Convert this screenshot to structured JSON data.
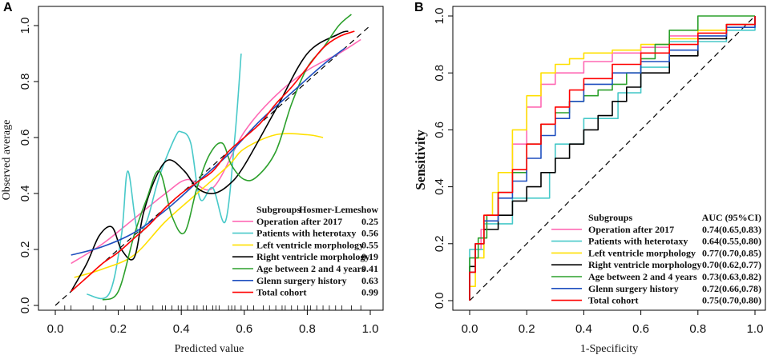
{
  "chart_data": [
    {
      "panel": "A",
      "type": "line",
      "title": "",
      "xlabel": "Predicted value",
      "ylabel": "Observed average",
      "xlim": [
        0.0,
        1.0
      ],
      "ylim": [
        0.0,
        1.0
      ],
      "xticks": [
        "0.0",
        "0.2",
        "0.4",
        "0.6",
        "0.8",
        "1.0"
      ],
      "yticks": [
        "0.0",
        "0.2",
        "0.4",
        "0.6",
        "0.8",
        "1.0"
      ],
      "reference_line": "diagonal dashed",
      "rug": [
        0.03,
        0.05,
        0.12,
        0.16,
        0.22,
        0.26,
        0.27,
        0.31,
        0.34,
        0.35,
        0.37,
        0.39,
        0.4,
        0.42,
        0.44,
        0.45,
        0.47,
        0.48,
        0.5,
        0.51,
        0.52,
        0.55,
        0.56,
        0.57,
        0.59,
        0.61,
        0.63,
        0.66,
        0.68,
        0.7,
        0.72,
        0.73,
        0.75,
        0.77,
        0.79,
        0.8,
        0.81,
        0.83,
        0.85,
        0.87,
        0.89,
        0.91,
        0.94,
        0.97
      ],
      "legend": {
        "header_left": "Subgroups",
        "header_right": "Hosmer-Lemeshow",
        "position": "bottom-right"
      },
      "series": [
        {
          "name": "Operation after 2017",
          "stat": "0.25",
          "color": "#ff69b4",
          "x": [
            0.05,
            0.15,
            0.25,
            0.35,
            0.42,
            0.5,
            0.6,
            0.7,
            0.8,
            0.9,
            0.97
          ],
          "y": [
            0.15,
            0.22,
            0.31,
            0.4,
            0.45,
            0.42,
            0.62,
            0.75,
            0.84,
            0.9,
            0.95
          ]
        },
        {
          "name": "Patients with heterotaxy",
          "stat": "0.56",
          "color": "#48c9c9",
          "x": [
            0.1,
            0.17,
            0.21,
            0.23,
            0.26,
            0.29,
            0.33,
            0.38,
            0.4,
            0.43,
            0.46,
            0.5,
            0.54,
            0.57,
            0.59
          ],
          "y": [
            0.04,
            0.04,
            0.25,
            0.48,
            0.27,
            0.3,
            0.46,
            0.6,
            0.62,
            0.58,
            0.38,
            0.42,
            0.3,
            0.6,
            0.9
          ]
        },
        {
          "name": "Left ventricle morphology",
          "stat": "0.55",
          "color": "#ffe000",
          "x": [
            0.06,
            0.15,
            0.25,
            0.35,
            0.45,
            0.55,
            0.6,
            0.7,
            0.8,
            0.85
          ],
          "y": [
            0.1,
            0.13,
            0.18,
            0.3,
            0.4,
            0.5,
            0.56,
            0.61,
            0.61,
            0.6
          ]
        },
        {
          "name": "Right ventricle morphology",
          "stat": "0.19",
          "color": "#000000",
          "x": [
            0.05,
            0.1,
            0.14,
            0.18,
            0.21,
            0.25,
            0.28,
            0.32,
            0.36,
            0.41,
            0.45,
            0.5,
            0.55,
            0.6,
            0.7,
            0.8,
            0.9,
            0.93
          ],
          "y": [
            0.05,
            0.15,
            0.25,
            0.28,
            0.2,
            0.17,
            0.33,
            0.46,
            0.52,
            0.48,
            0.42,
            0.4,
            0.43,
            0.5,
            0.7,
            0.9,
            0.97,
            0.98
          ]
        },
        {
          "name": "Age between 2 and 4 years",
          "stat": "0.41",
          "color": "#2ca02c",
          "x": [
            0.15,
            0.2,
            0.25,
            0.29,
            0.33,
            0.37,
            0.41,
            0.45,
            0.49,
            0.53,
            0.56,
            0.6,
            0.64,
            0.7,
            0.75,
            0.8,
            0.85,
            0.9,
            0.94
          ],
          "y": [
            0.02,
            0.05,
            0.25,
            0.38,
            0.48,
            0.32,
            0.26,
            0.42,
            0.54,
            0.58,
            0.5,
            0.45,
            0.46,
            0.55,
            0.72,
            0.85,
            0.92,
            1.0,
            1.04
          ]
        },
        {
          "name": "Glenn surgery history",
          "stat": "0.63",
          "color": "#1f4fbf",
          "x": [
            0.05,
            0.15,
            0.25,
            0.35,
            0.45,
            0.55,
            0.65,
            0.75,
            0.85,
            0.92
          ],
          "y": [
            0.18,
            0.21,
            0.26,
            0.34,
            0.44,
            0.54,
            0.66,
            0.76,
            0.86,
            0.92
          ]
        },
        {
          "name": "Total cohort",
          "stat": "0.99",
          "color": "#ff0000",
          "x": [
            0.05,
            0.1,
            0.15,
            0.2,
            0.25,
            0.3,
            0.35,
            0.4,
            0.45,
            0.5,
            0.55,
            0.6,
            0.65,
            0.7,
            0.75,
            0.8,
            0.85,
            0.9,
            0.95
          ],
          "y": [
            0.05,
            0.1,
            0.15,
            0.19,
            0.24,
            0.29,
            0.35,
            0.4,
            0.44,
            0.48,
            0.55,
            0.6,
            0.65,
            0.72,
            0.78,
            0.85,
            0.92,
            0.96,
            0.98
          ]
        }
      ]
    },
    {
      "panel": "B",
      "type": "line",
      "title": "",
      "xlabel": "1-Specificity",
      "ylabel": "Sensitivity",
      "xlim": [
        0.0,
        1.0
      ],
      "ylim": [
        0.0,
        1.0
      ],
      "xticks": [
        "0.0",
        "0.2",
        "0.4",
        "0.6",
        "0.8",
        "1.0"
      ],
      "yticks": [
        "0.0",
        "0.2",
        "0.4",
        "0.6",
        "0.8",
        "1.0"
      ],
      "reference_line": "diagonal dashed",
      "legend": {
        "header_left": "Subgroups",
        "header_right": "AUC (95%CI)",
        "position": "bottom-right"
      },
      "series": [
        {
          "name": "Operation after 2017",
          "stat": "0.74(0.65,0.83)",
          "color": "#ff69b4",
          "x": [
            0,
            0,
            0.02,
            0.04,
            0.06,
            0.1,
            0.15,
            0.2,
            0.25,
            0.3,
            0.4,
            0.5,
            0.6,
            0.7,
            0.8,
            0.9,
            1
          ],
          "y": [
            0,
            0.1,
            0.18,
            0.25,
            0.3,
            0.38,
            0.55,
            0.68,
            0.76,
            0.8,
            0.84,
            0.87,
            0.89,
            0.93,
            0.95,
            0.97,
            1
          ]
        },
        {
          "name": "Patients with heterotaxy",
          "stat": "0.64(0.55,0.80)",
          "color": "#48c9c9",
          "x": [
            0,
            0,
            0.03,
            0.05,
            0.1,
            0.15,
            0.2,
            0.28,
            0.3,
            0.35,
            0.4,
            0.45,
            0.5,
            0.52,
            0.55,
            0.6,
            0.7,
            0.8,
            0.9,
            1
          ],
          "y": [
            0,
            0.18,
            0.18,
            0.27,
            0.27,
            0.36,
            0.36,
            0.45,
            0.55,
            0.55,
            0.64,
            0.64,
            0.64,
            0.73,
            0.73,
            0.82,
            0.91,
            0.91,
            0.95,
            1
          ]
        },
        {
          "name": "Left ventricle morphology",
          "stat": "0.77(0.70,0.85)",
          "color": "#ffe000",
          "x": [
            0,
            0,
            0.02,
            0.05,
            0.08,
            0.1,
            0.15,
            0.2,
            0.25,
            0.3,
            0.35,
            0.4,
            0.5,
            0.6,
            0.7,
            0.8,
            0.9,
            1
          ],
          "y": [
            0,
            0.05,
            0.15,
            0.3,
            0.38,
            0.45,
            0.6,
            0.72,
            0.8,
            0.83,
            0.85,
            0.87,
            0.88,
            0.9,
            0.92,
            0.95,
            0.97,
            1
          ]
        },
        {
          "name": "Right ventricle morphology",
          "stat": "0.70(0.62,0.77)",
          "color": "#000000",
          "x": [
            0,
            0,
            0.02,
            0.05,
            0.1,
            0.15,
            0.2,
            0.25,
            0.3,
            0.35,
            0.4,
            0.45,
            0.5,
            0.55,
            0.6,
            0.7,
            0.8,
            0.9,
            1
          ],
          "y": [
            0,
            0.12,
            0.2,
            0.25,
            0.3,
            0.35,
            0.4,
            0.45,
            0.5,
            0.55,
            0.6,
            0.65,
            0.7,
            0.75,
            0.8,
            0.86,
            0.92,
            0.97,
            1
          ]
        },
        {
          "name": "Age between 2 and 4 years",
          "stat": "0.73(0.63,0.82)",
          "color": "#2ca02c",
          "x": [
            0,
            0,
            0.03,
            0.06,
            0.1,
            0.15,
            0.2,
            0.25,
            0.3,
            0.35,
            0.4,
            0.45,
            0.5,
            0.55,
            0.6,
            0.65,
            0.7,
            0.8,
            0.9,
            1
          ],
          "y": [
            0,
            0.15,
            0.22,
            0.3,
            0.38,
            0.45,
            0.55,
            0.62,
            0.66,
            0.7,
            0.72,
            0.74,
            0.76,
            0.8,
            0.85,
            0.9,
            0.95,
            1,
            1,
            1
          ]
        },
        {
          "name": "Glenn surgery history",
          "stat": "0.72(0.66,0.78)",
          "color": "#1f4fbf",
          "x": [
            0,
            0,
            0.02,
            0.05,
            0.1,
            0.15,
            0.2,
            0.25,
            0.3,
            0.35,
            0.4,
            0.5,
            0.6,
            0.7,
            0.8,
            0.9,
            1
          ],
          "y": [
            0,
            0.1,
            0.2,
            0.28,
            0.36,
            0.42,
            0.5,
            0.58,
            0.64,
            0.7,
            0.76,
            0.8,
            0.84,
            0.88,
            0.93,
            0.96,
            1
          ]
        },
        {
          "name": "Total cohort",
          "stat": "0.75(0.70,0.80)",
          "color": "#ff0000",
          "x": [
            0,
            0,
            0.02,
            0.05,
            0.1,
            0.15,
            0.2,
            0.25,
            0.3,
            0.35,
            0.4,
            0.5,
            0.6,
            0.7,
            0.8,
            0.9,
            1
          ],
          "y": [
            0,
            0.1,
            0.2,
            0.3,
            0.38,
            0.46,
            0.55,
            0.62,
            0.68,
            0.74,
            0.78,
            0.83,
            0.87,
            0.9,
            0.94,
            0.97,
            1
          ]
        }
      ]
    }
  ]
}
